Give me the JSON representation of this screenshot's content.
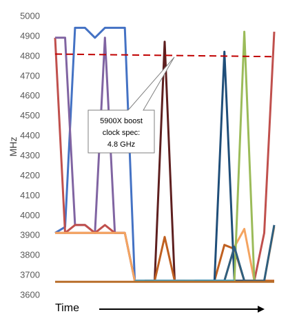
{
  "chart_data": {
    "type": "line",
    "title": "",
    "xlabel": "Time",
    "ylabel": "MHz",
    "ylim": [
      3600,
      5000
    ],
    "yticks": [
      3600,
      3700,
      3800,
      3900,
      4000,
      4100,
      4200,
      4300,
      4400,
      4500,
      4600,
      4700,
      4800,
      4900,
      5000
    ],
    "grid": false,
    "legend": "none",
    "x_axis_arrow": true,
    "series": [
      {
        "color": "#4472c4",
        "x": [
          0,
          1,
          2,
          3,
          4,
          5,
          6,
          7,
          8,
          9,
          11,
          13
        ],
        "y": [
          3910,
          3940,
          4940,
          4940,
          4890,
          4940,
          4940,
          4940,
          3670,
          3670,
          3670,
          3670
        ]
      },
      {
        "color": "#c0504d",
        "x": [
          0,
          1,
          2,
          3,
          4,
          5,
          6,
          7,
          8,
          9,
          10,
          11,
          12,
          13,
          14,
          15,
          16,
          17,
          18,
          19,
          20,
          21,
          22
        ],
        "y": [
          4890,
          3910,
          3910,
          3910,
          3910,
          3910,
          3910,
          3910,
          3670,
          3670,
          3670,
          3670,
          3670,
          3670,
          3670,
          3670,
          3670,
          3670,
          3670,
          3670,
          3670,
          3910,
          4920
        ]
      },
      {
        "color": "#8064a2",
        "x": [
          0,
          1,
          2,
          3,
          4,
          5,
          6,
          7,
          8
        ],
        "y": [
          4890,
          4890,
          3950,
          3950,
          3910,
          4890,
          3910,
          3910,
          3670
        ]
      },
      {
        "color": "#c0504d",
        "x": [
          0,
          1,
          2,
          3,
          4,
          5,
          6,
          7
        ],
        "y": [
          3910,
          3910,
          3950,
          3950,
          3910,
          3950,
          3910,
          3910
        ]
      },
      {
        "color": "#f4a460",
        "x": [
          0,
          1,
          2,
          3,
          4,
          5,
          6,
          7,
          8,
          9,
          10,
          11,
          12,
          13,
          14,
          15,
          16,
          17,
          18,
          19,
          20,
          21,
          22
        ],
        "y": [
          3910,
          3910,
          3910,
          3910,
          3910,
          3910,
          3910,
          3910,
          3670,
          3670,
          3670,
          3670,
          3670,
          3670,
          3670,
          3670,
          3670,
          3670,
          3840,
          3930,
          3670,
          3670,
          3940
        ]
      },
      {
        "color": "#5e1f1f",
        "x": [
          9,
          10,
          11,
          12
        ],
        "y": [
          3670,
          3670,
          4870,
          3670
        ]
      },
      {
        "color": "#c06020",
        "x": [
          9,
          10,
          11,
          12,
          13,
          14,
          15,
          16,
          17,
          18,
          19,
          20,
          21,
          22
        ],
        "y": [
          3670,
          3670,
          3890,
          3670,
          3670,
          3670,
          3670,
          3670,
          3850,
          3830,
          3670,
          3670,
          3670,
          3670
        ]
      },
      {
        "color": "#1f4e79",
        "x": [
          14,
          15,
          16,
          17,
          18,
          19
        ],
        "y": [
          3670,
          3670,
          3670,
          4820,
          3670,
          3670
        ]
      },
      {
        "color": "#9bbb59",
        "x": [
          17,
          18,
          19,
          20
        ],
        "y": [
          3670,
          3670,
          4920,
          3670
        ]
      },
      {
        "color": "#2f5f7f",
        "x": [
          16,
          17,
          18,
          19,
          20,
          21,
          22
        ],
        "y": [
          3670,
          3670,
          3840,
          3670,
          3670,
          3670,
          3950
        ]
      },
      {
        "color": "#3aa0c8",
        "x": [
          8,
          9,
          10,
          11,
          12,
          13,
          14,
          15,
          16,
          17,
          18
        ],
        "y": [
          3670,
          3670,
          3670,
          3670,
          3670,
          3670,
          3670,
          3670,
          3670,
          3670,
          3670
        ]
      },
      {
        "color": "#b86e2a",
        "x": [
          0,
          22
        ],
        "y": [
          3665,
          3665
        ]
      }
    ],
    "reference_line": {
      "color": "#c00000",
      "style": "dashed",
      "y_start": 4808,
      "y_end": 4795
    },
    "annotation": {
      "lines": [
        "5900X boost",
        "clock spec:",
        "4.8 GHz"
      ],
      "target_y": 4800
    }
  }
}
